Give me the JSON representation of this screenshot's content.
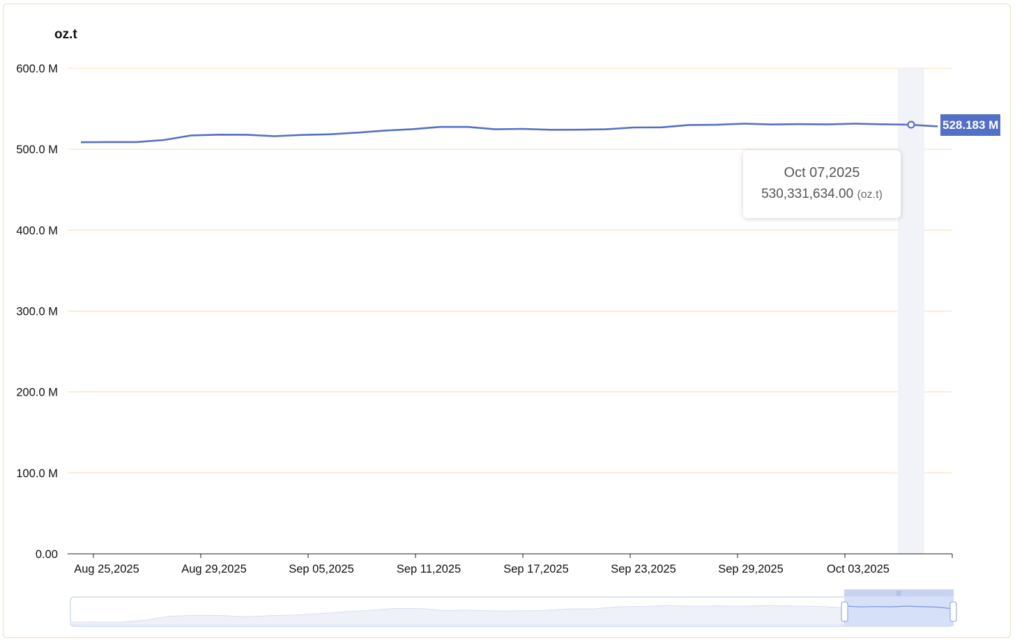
{
  "chart_data": {
    "type": "line",
    "unit_label": "oz.t",
    "y_ticks": [
      "0.00",
      "100.0 M",
      "200.0 M",
      "300.0 M",
      "400.0 M",
      "500.0 M",
      "600.0 M"
    ],
    "ylim": [
      0,
      600000000
    ],
    "x_ticks": [
      "Aug 25,2025",
      "Aug 29,2025",
      "Sep 05,2025",
      "Sep 11,2025",
      "Sep 17,2025",
      "Sep 23,2025",
      "Sep 29,2025",
      "Oct 03,2025"
    ],
    "grid": true,
    "series": [
      {
        "values": [
          508.6,
          508.8,
          508.8,
          511.3,
          517.0,
          518.0,
          517.9,
          516.1,
          517.6,
          518.4,
          520.5,
          523.0,
          524.8,
          527.5,
          527.5,
          524.6,
          525.1,
          524.0,
          524.1,
          524.6,
          526.8,
          527.0,
          529.9,
          530.2,
          531.6,
          530.5,
          531.0,
          530.6,
          531.6,
          530.8,
          530.3,
          528.183
        ],
        "value_unit": "M oz.t",
        "color": "#5470c6"
      }
    ],
    "tooltip": {
      "date": "Oct 07,2025",
      "value": "530,331,634.00",
      "unit": "(oz.t)"
    },
    "end_label": "528.183 M",
    "colors": {
      "line": "#5470c6",
      "grid": "#f8dcb9",
      "highlight_band": "#f1f3f9",
      "slider_fill": "#d3ddf8",
      "slider_border": "#c5d2e8"
    }
  }
}
